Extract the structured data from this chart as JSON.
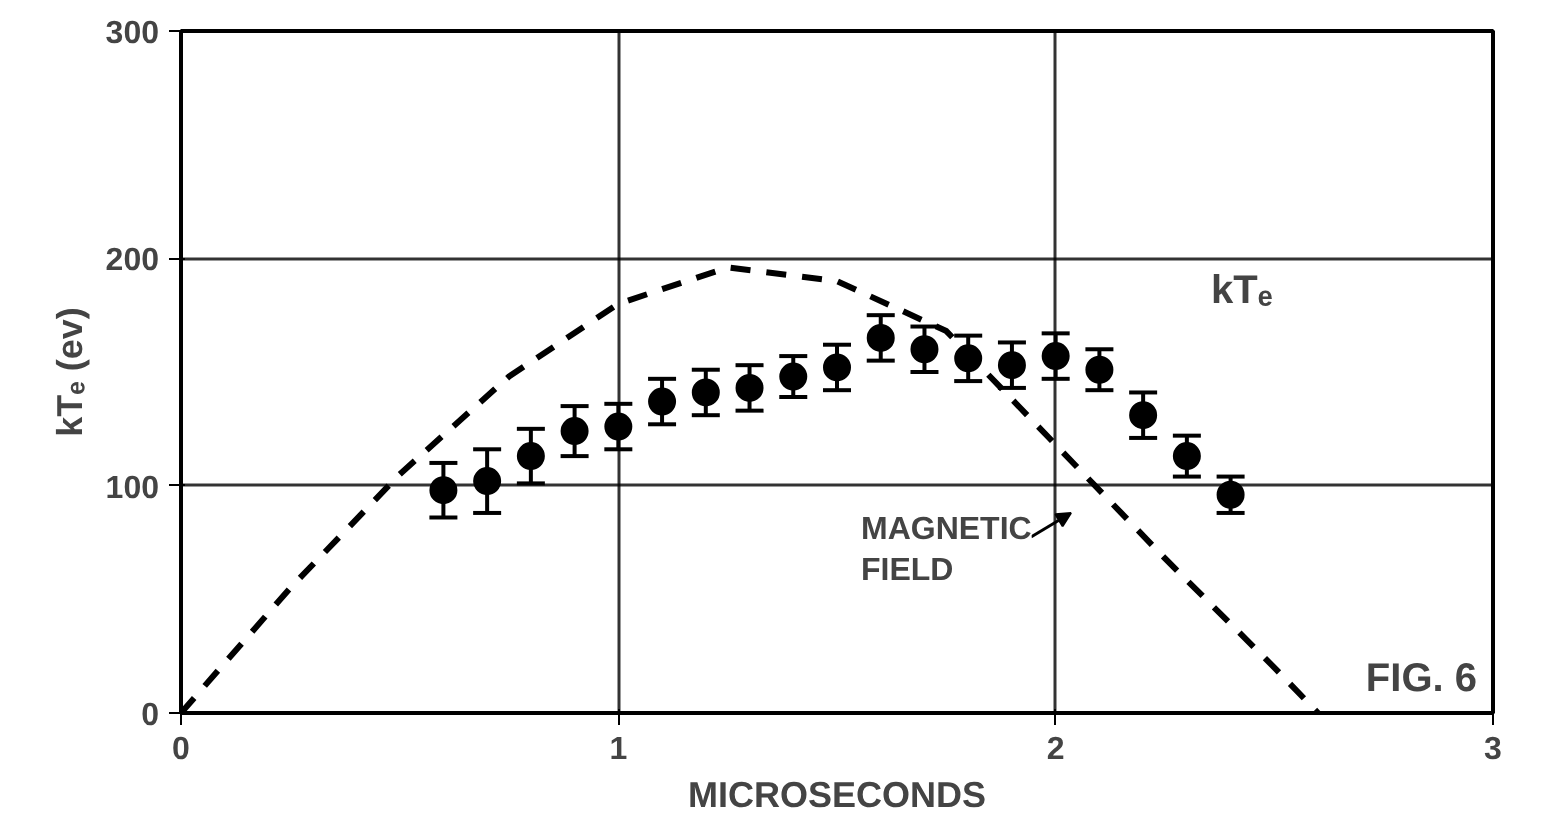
{
  "chart_data": {
    "type": "scatter",
    "xlabel": "MICROSECONDS",
    "ylabel": "kTₑ (ev)",
    "xlim": [
      0,
      3
    ],
    "ylim": [
      0,
      300
    ],
    "xticks": [
      0,
      1,
      2,
      3
    ],
    "yticks": [
      0,
      100,
      200,
      300
    ],
    "grid": true,
    "marker": "circle",
    "series": [
      {
        "color": "#000000",
        "x": [
          0.6,
          0.7,
          0.8,
          0.9,
          1.0,
          1.1,
          1.2,
          1.3,
          1.4,
          1.5,
          1.6,
          1.7,
          1.8,
          1.9,
          2.0,
          2.1,
          2.2,
          2.3,
          2.4
        ],
        "values": [
          98,
          102,
          113,
          124,
          126,
          137,
          141,
          143,
          148,
          152,
          165,
          160,
          156,
          153,
          157,
          151,
          131,
          113,
          96
        ],
        "errors": [
          12,
          14,
          12,
          11,
          10,
          10,
          10,
          10,
          9,
          10,
          10,
          10,
          10,
          10,
          10,
          9,
          10,
          9,
          8
        ]
      },
      {
        "type": "line",
        "color": "#000000",
        "line_style": "dashed",
        "marker": "none",
        "x": [
          0,
          0.25,
          0.5,
          0.75,
          1.0,
          1.25,
          1.5,
          1.75,
          2.0,
          2.25,
          2.5,
          2.6
        ],
        "values": [
          0,
          55,
          105,
          148,
          180,
          196,
          190,
          168,
          118,
          68,
          20,
          0
        ]
      }
    ],
    "annotations": [
      "kTₑ",
      "MAGNETIC FIELD",
      "FIG. 6"
    ]
  }
}
